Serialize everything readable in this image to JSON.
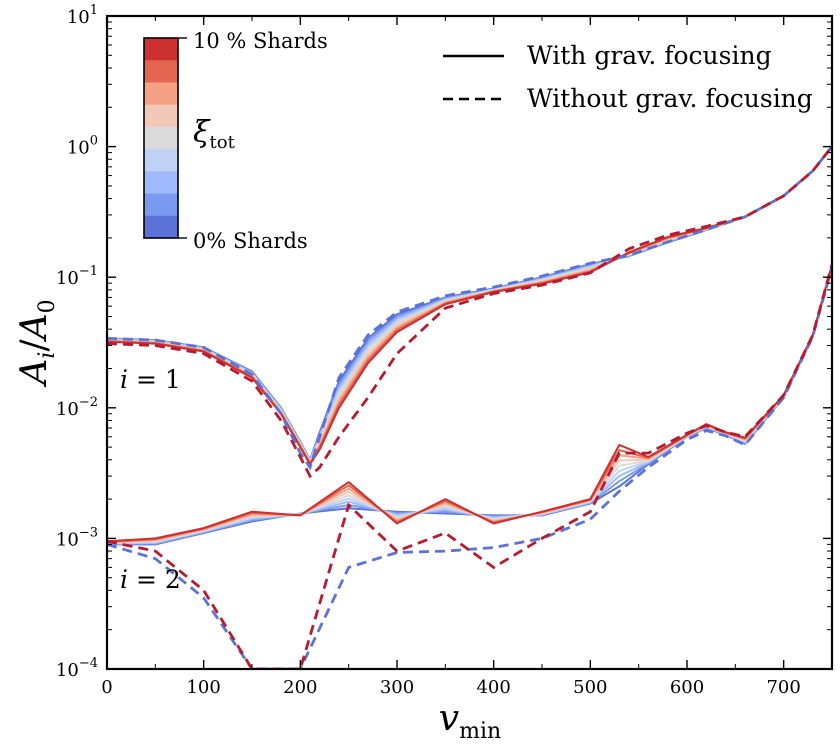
{
  "chart_data": {
    "type": "line",
    "xlabel": "v_min",
    "ylabel": "A_i/A_0",
    "xlim": [
      0,
      750
    ],
    "ylim": [
      0.0001,
      10
    ],
    "yscale": "log",
    "x_ticks": [
      "0",
      "100",
      "200",
      "300",
      "400",
      "500",
      "600",
      "700"
    ],
    "y_ticks": [
      {
        "base": "10",
        "exp": "−4"
      },
      {
        "base": "10",
        "exp": "−3"
      },
      {
        "base": "10",
        "exp": "−2"
      },
      {
        "base": "10",
        "exp": "−1"
      },
      {
        "base": "10",
        "exp": "0"
      },
      {
        "base": "10",
        "exp": "1"
      }
    ],
    "legend": {
      "placement": "top-right",
      "entries": [
        {
          "label": "With grav. focusing",
          "style": "solid"
        },
        {
          "label": "Without grav. focusing",
          "style": "dashed"
        }
      ]
    },
    "colorbar": {
      "placement": "top-left",
      "top_label": "10 % Shards",
      "bottom_label": "0% Shards",
      "symbol": "ξ",
      "symbol_sub": "tot",
      "colors": [
        "#cc3030",
        "#e26650",
        "#f4a184",
        "#f2c9b6",
        "#dadada",
        "#c0d2f4",
        "#9ebafa",
        "#7a9af0",
        "#5b72d8"
      ]
    },
    "annotations": [
      {
        "text_base": "i",
        "text_rest": " = 1",
        "near": "upper curves, left"
      },
      {
        "text_base": "i",
        "text_rest": " = 2",
        "near": "lower curves, left"
      }
    ],
    "families": [
      {
        "name": "i = 1",
        "x": [
          0,
          50,
          100,
          150,
          180,
          200,
          210,
          220,
          240,
          270,
          300,
          350,
          400,
          450,
          500,
          540,
          580,
          620,
          660,
          700,
          730,
          750
        ],
        "solid_low": [
          0.034,
          0.033,
          0.029,
          0.019,
          0.01,
          0.0055,
          0.004,
          0.0065,
          0.016,
          0.034,
          0.052,
          0.07,
          0.082,
          0.1,
          0.126,
          0.145,
          0.185,
          0.23,
          0.29,
          0.42,
          0.65,
          1.0
        ],
        "solid_high": [
          0.032,
          0.031,
          0.027,
          0.017,
          0.009,
          0.005,
          0.0037,
          0.0048,
          0.01,
          0.022,
          0.038,
          0.062,
          0.077,
          0.089,
          0.109,
          0.155,
          0.203,
          0.238,
          0.29,
          0.42,
          0.65,
          1.0
        ],
        "dashed_low": [
          0.034,
          0.033,
          0.029,
          0.018,
          0.009,
          0.0045,
          0.0035,
          0.006,
          0.017,
          0.036,
          0.054,
          0.072,
          0.084,
          0.102,
          0.128,
          0.147,
          0.186,
          0.231,
          0.29,
          0.42,
          0.65,
          1.0
        ],
        "dashed_high": [
          0.031,
          0.03,
          0.026,
          0.016,
          0.008,
          0.0042,
          0.003,
          0.0035,
          0.006,
          0.012,
          0.026,
          0.058,
          0.075,
          0.087,
          0.108,
          0.165,
          0.21,
          0.245,
          0.29,
          0.42,
          0.65,
          1.0
        ]
      },
      {
        "name": "i = 2",
        "x": [
          0,
          50,
          100,
          150,
          200,
          250,
          300,
          350,
          400,
          450,
          500,
          530,
          560,
          600,
          620,
          640,
          660,
          700,
          730,
          750
        ],
        "solid_low": [
          0.0009,
          0.0009,
          0.0011,
          0.00135,
          0.00155,
          0.0017,
          0.0016,
          0.00155,
          0.0015,
          0.0015,
          0.00185,
          0.0025,
          0.0037,
          0.006,
          0.007,
          0.0062,
          0.0053,
          0.012,
          0.035,
          0.12
        ],
        "solid_high": [
          0.00095,
          0.001,
          0.0012,
          0.0016,
          0.0015,
          0.0027,
          0.0013,
          0.002,
          0.0013,
          0.0016,
          0.002,
          0.0052,
          0.0042,
          0.0062,
          0.0075,
          0.0065,
          0.0059,
          0.0125,
          0.036,
          0.125
        ],
        "dashed_low": [
          0.0009,
          0.0007,
          0.00035,
          0.0001,
          0.0001,
          0.0006,
          0.00078,
          0.0008,
          0.00085,
          0.001,
          0.0014,
          0.0023,
          0.0035,
          0.0057,
          0.0067,
          0.0061,
          0.0052,
          0.012,
          0.035,
          0.12
        ],
        "dashed_high": [
          0.00095,
          0.0008,
          0.0004,
          0.0001,
          0.0001,
          0.0018,
          0.0008,
          0.0011,
          0.0006,
          0.001,
          0.0016,
          0.0045,
          0.0045,
          0.0064,
          0.0073,
          0.0065,
          0.006,
          0.0125,
          0.036,
          0.125
        ]
      }
    ],
    "grid": false
  }
}
